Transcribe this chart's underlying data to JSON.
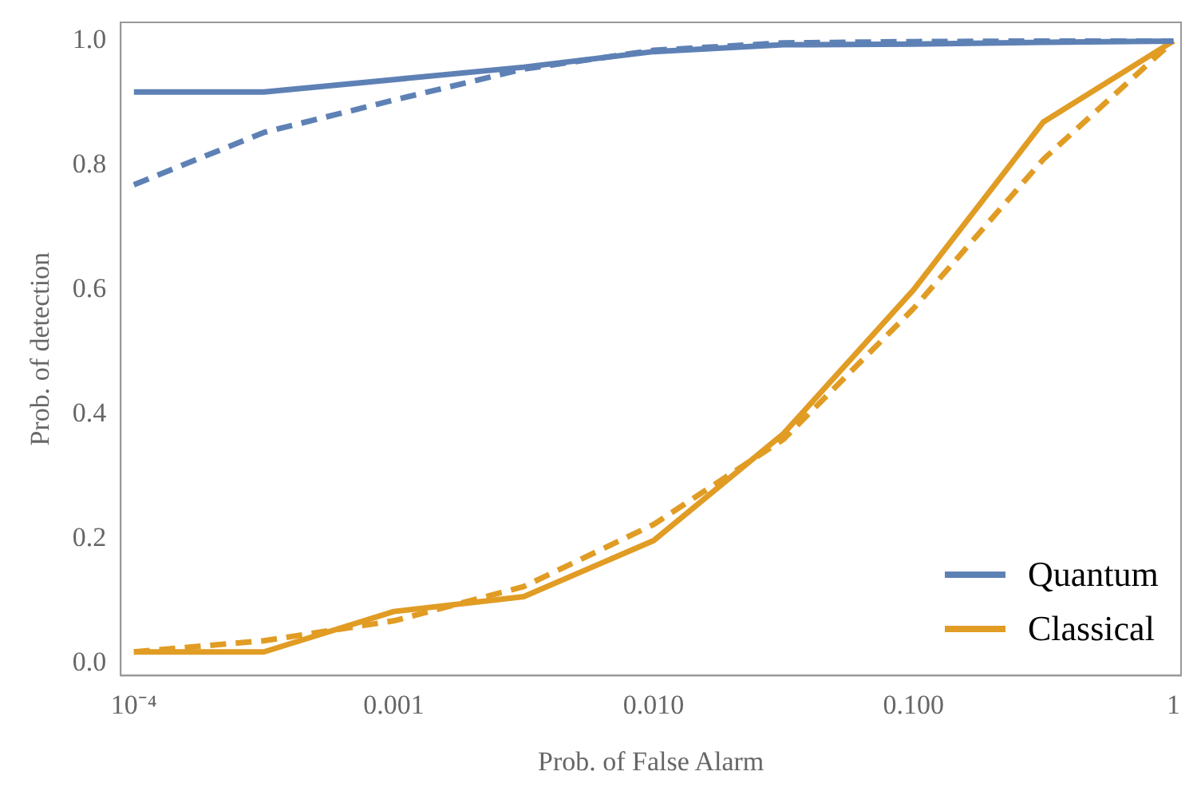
{
  "chart_data": {
    "type": "line",
    "xlabel": "Prob. of False Alarm",
    "ylabel": "Prob. of detection",
    "log": "x",
    "x": [
      0.0001,
      0.0003162,
      0.001,
      0.003162,
      0.01,
      0.03162,
      0.1,
      0.3162,
      1
    ],
    "xlim": [
      8.9e-05,
      1.07
    ],
    "ylim": [
      -0.02,
      1.03
    ],
    "xticks": [
      {
        "value": 0.0001,
        "label": "10⁻⁴"
      },
      {
        "value": 0.001,
        "label": "0.001"
      },
      {
        "value": 0.01,
        "label": "0.010"
      },
      {
        "value": 0.1,
        "label": "0.100"
      },
      1
    ],
    "yticks": [
      {
        "value": 0,
        "label": "0.0"
      },
      {
        "value": 0.2,
        "label": "0.2"
      },
      {
        "value": 0.4,
        "label": "0.4"
      },
      {
        "value": 0.6,
        "label": "0.6"
      },
      {
        "value": 0.8,
        "label": "0.8"
      },
      {
        "value": 1,
        "label": "1.0"
      }
    ],
    "grid": false,
    "legend": "bottom right",
    "marker": "none",
    "series": [
      {
        "name": "Quantum",
        "color": "#5e81b5",
        "line_style": "solid",
        "values": [
          0.918,
          0.918,
          0.938,
          0.958,
          0.983,
          0.994,
          0.995,
          0.998,
          1.0
        ]
      },
      {
        "name": "Classical",
        "color": "#e19c24",
        "line_style": "solid",
        "values": [
          0.018,
          0.018,
          0.083,
          0.107,
          0.197,
          0.369,
          0.6,
          0.87,
          1.0
        ]
      },
      {
        "color": "#5e81b5",
        "line_style": "dashed",
        "values": [
          0.769,
          0.853,
          0.905,
          0.955,
          0.985,
          0.997,
          0.999,
          1.0,
          1.0
        ]
      },
      {
        "color": "#e19c24",
        "line_style": "dashed",
        "values": [
          0.018,
          0.036,
          0.068,
          0.123,
          0.223,
          0.36,
          0.57,
          0.81,
          1.0
        ]
      }
    ]
  }
}
